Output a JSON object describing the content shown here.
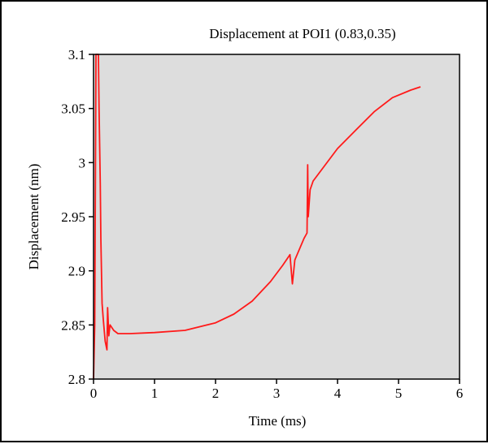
{
  "chart_data": {
    "type": "line",
    "title": "Displacement at POI1 (0.83,0.35)",
    "xlabel": "Time (ms)",
    "ylabel": "Displacement (nm)",
    "xlim": [
      0,
      6
    ],
    "ylim": [
      2.8,
      3.1
    ],
    "xticks": [
      "0",
      "1",
      "2",
      "3",
      "4",
      "5",
      "6"
    ],
    "xtick_values": [
      0,
      1,
      2,
      3,
      4,
      5,
      6
    ],
    "yticks": [
      "2.8",
      "2.85",
      "2.9",
      "2.95",
      "3",
      "3.05",
      "3.1"
    ],
    "ytick_values": [
      2.8,
      2.85,
      2.9,
      2.95,
      3.0,
      3.05,
      3.1
    ],
    "grid": false,
    "background": "#dddddd",
    "series": [
      {
        "name": "Displacement",
        "color": "#ff1a1a",
        "x": [
          0.0,
          0.02,
          0.04,
          0.08,
          0.09,
          0.11,
          0.12,
          0.14,
          0.16,
          0.19,
          0.22,
          0.23,
          0.25,
          0.27,
          0.33,
          0.4,
          0.6,
          1.0,
          1.5,
          2.0,
          2.3,
          2.6,
          2.9,
          3.1,
          3.22,
          3.26,
          3.3,
          3.45,
          3.5,
          3.51,
          3.52,
          3.55,
          3.6,
          3.8,
          4.0,
          4.3,
          4.6,
          4.9,
          5.2,
          5.36
        ],
        "y": [
          2.8,
          2.85,
          3.1,
          3.1,
          3.05,
          2.98,
          2.93,
          2.87,
          2.855,
          2.835,
          2.827,
          2.866,
          2.84,
          2.85,
          2.845,
          2.842,
          2.842,
          2.843,
          2.845,
          2.852,
          2.86,
          2.872,
          2.89,
          2.905,
          2.915,
          2.888,
          2.91,
          2.93,
          2.935,
          2.998,
          2.95,
          2.975,
          2.983,
          2.998,
          3.013,
          3.03,
          3.047,
          3.06,
          3.067,
          3.07
        ]
      }
    ]
  }
}
